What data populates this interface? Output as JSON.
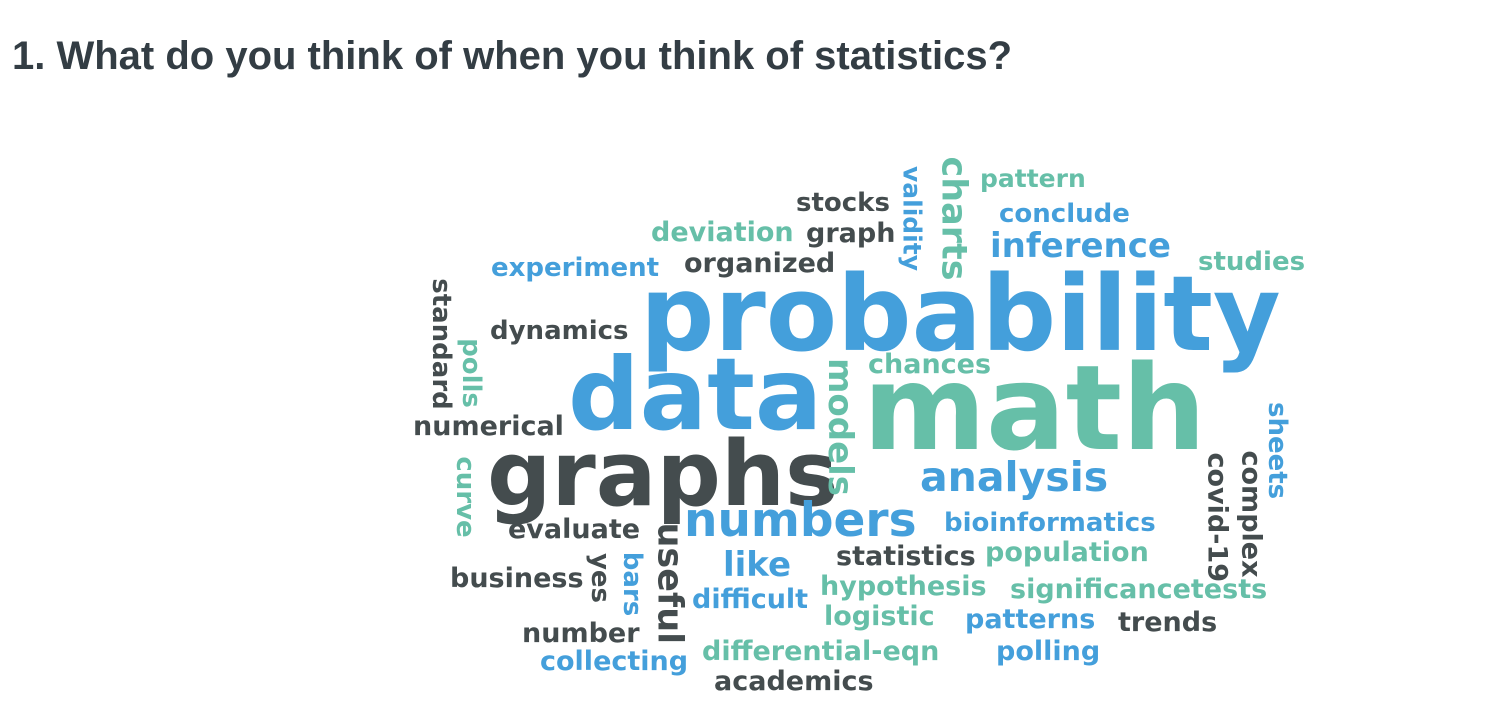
{
  "question": "1. What do you think of when you think of statistics?",
  "colors": {
    "blue": "#449fdb",
    "teal": "#66bfa8",
    "dark": "#444c4e",
    "title": "#333d44"
  },
  "words": [
    {
      "text": "probability",
      "color": "#449fdb"
    },
    {
      "text": "math",
      "color": "#66bfa8"
    },
    {
      "text": "data",
      "color": "#449fdb"
    },
    {
      "text": "graphs",
      "color": "#444c4e"
    },
    {
      "text": "numbers",
      "color": "#449fdb"
    },
    {
      "text": "analysis",
      "color": "#449fdb"
    },
    {
      "text": "inference",
      "color": "#449fdb"
    },
    {
      "text": "charts",
      "color": "#66bfa8"
    },
    {
      "text": "models",
      "color": "#66bfa8"
    },
    {
      "text": "useful",
      "color": "#444c4e"
    },
    {
      "text": "like",
      "color": "#449fdb"
    },
    {
      "text": "validity",
      "color": "#449fdb"
    },
    {
      "text": "pattern",
      "color": "#66bfa8"
    },
    {
      "text": "stocks",
      "color": "#444c4e"
    },
    {
      "text": "conclude",
      "color": "#449fdb"
    },
    {
      "text": "deviation",
      "color": "#66bfa8"
    },
    {
      "text": "graph",
      "color": "#444c4e"
    },
    {
      "text": "studies",
      "color": "#66bfa8"
    },
    {
      "text": "experiment",
      "color": "#449fdb"
    },
    {
      "text": "organized",
      "color": "#444c4e"
    },
    {
      "text": "standard",
      "color": "#444c4e"
    },
    {
      "text": "dynamics",
      "color": "#444c4e"
    },
    {
      "text": "polls",
      "color": "#66bfa8"
    },
    {
      "text": "chances",
      "color": "#66bfa8"
    },
    {
      "text": "numerical",
      "color": "#444c4e"
    },
    {
      "text": "sheets",
      "color": "#449fdb"
    },
    {
      "text": "covid-19",
      "color": "#444c4e"
    },
    {
      "text": "complex",
      "color": "#444c4e"
    },
    {
      "text": "curve",
      "color": "#66bfa8"
    },
    {
      "text": "evaluate",
      "color": "#444c4e"
    },
    {
      "text": "bioinformatics",
      "color": "#449fdb"
    },
    {
      "text": "statistics",
      "color": "#444c4e"
    },
    {
      "text": "population",
      "color": "#66bfa8"
    },
    {
      "text": "business",
      "color": "#444c4e"
    },
    {
      "text": "yes",
      "color": "#444c4e"
    },
    {
      "text": "bars",
      "color": "#449fdb"
    },
    {
      "text": "hypothesis",
      "color": "#66bfa8"
    },
    {
      "text": "significancetests",
      "color": "#66bfa8"
    },
    {
      "text": "difficult",
      "color": "#449fdb"
    },
    {
      "text": "logistic",
      "color": "#66bfa8"
    },
    {
      "text": "patterns",
      "color": "#449fdb"
    },
    {
      "text": "trends",
      "color": "#444c4e"
    },
    {
      "text": "number",
      "color": "#444c4e"
    },
    {
      "text": "collecting",
      "color": "#449fdb"
    },
    {
      "text": "differential-eqn",
      "color": "#66bfa8"
    },
    {
      "text": "polling",
      "color": "#449fdb"
    },
    {
      "text": "academics",
      "color": "#444c4e"
    }
  ]
}
